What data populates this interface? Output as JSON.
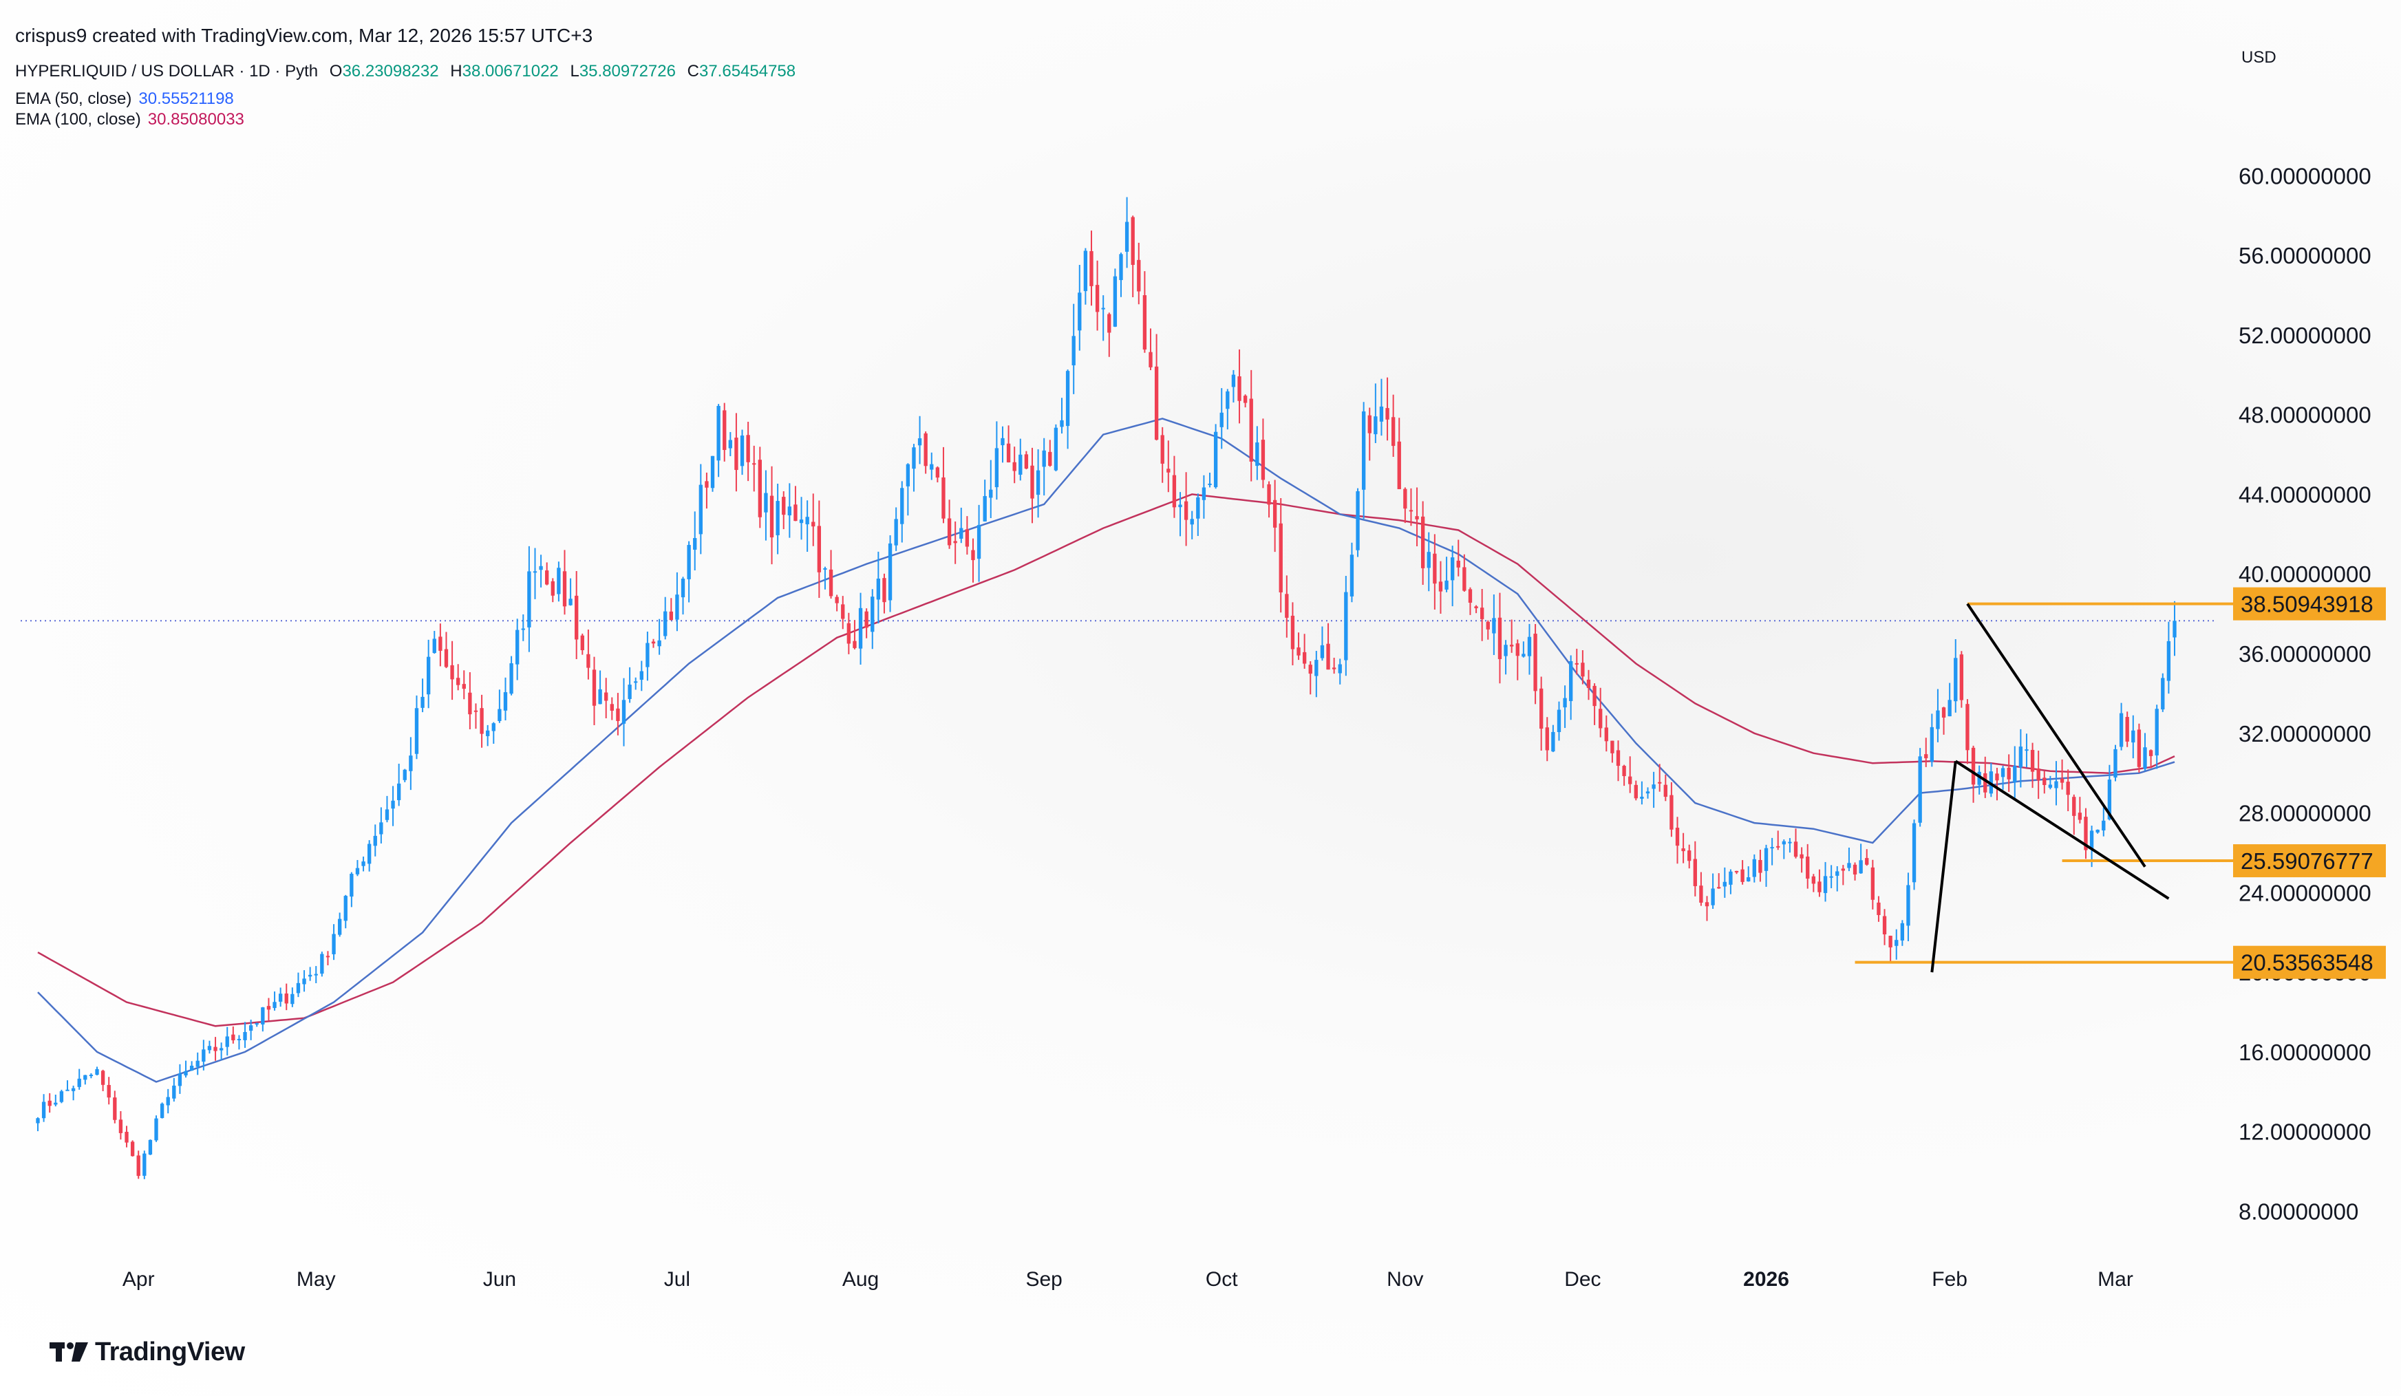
{
  "header": {
    "credit": "crispus9 created with TradingView.com, Mar 12, 2026 15:57 UTC+3",
    "symbol": "HYPERLIQUID / US DOLLAR · 1D · Pyth",
    "ohlc": {
      "o_label": "O",
      "o_value": "36.23098232",
      "h_label": "H",
      "h_value": "38.00671022",
      "l_label": "L",
      "l_value": "35.80972726",
      "c_label": "C",
      "c_value": "37.65454758"
    },
    "ema50": {
      "label": "EMA (50, close)",
      "value": "30.55521198"
    },
    "ema100": {
      "label": "EMA (100, close)",
      "value": "30.85080033"
    }
  },
  "currency": "USD",
  "logo_text": "TradingView",
  "colors": {
    "up": "#2196f3",
    "down": "#ef4052",
    "ema50": "#4a72c8",
    "ema100": "#c2325c",
    "level": "#f5a623",
    "last_price_line": "#5b6bd6",
    "pattern": "#000000"
  },
  "chart_data": {
    "type": "candlestick",
    "title": "HYPERLIQUID / US DOLLAR · 1D · Pyth",
    "ylim": [
      5.6,
      66.4
    ],
    "y_ticks": [
      "60.00000000",
      "56.00000000",
      "52.00000000",
      "48.00000000",
      "44.00000000",
      "40.00000000",
      "36.00000000",
      "32.00000000",
      "28.00000000",
      "24.00000000",
      "20.00000000",
      "16.00000000",
      "12.00000000",
      "8.00000000"
    ],
    "x_ticks": [
      {
        "label": "Apr",
        "day": 17,
        "bold": false
      },
      {
        "label": "May",
        "day": 47,
        "bold": false
      },
      {
        "label": "Jun",
        "day": 78,
        "bold": false
      },
      {
        "label": "Jul",
        "day": 108,
        "bold": false
      },
      {
        "label": "Aug",
        "day": 139,
        "bold": false
      },
      {
        "label": "Sep",
        "day": 170,
        "bold": false
      },
      {
        "label": "Oct",
        "day": 200,
        "bold": false
      },
      {
        "label": "Nov",
        "day": 231,
        "bold": false
      },
      {
        "label": "Dec",
        "day": 261,
        "bold": false
      },
      {
        "label": "2026",
        "day": 292,
        "bold": true
      },
      {
        "label": "Feb",
        "day": 323,
        "bold": false
      },
      {
        "label": "Mar",
        "day": 351,
        "bold": false
      }
    ],
    "price_anchors": [
      [
        0,
        13.0
      ],
      [
        6,
        14.3
      ],
      [
        10,
        15.0
      ],
      [
        14,
        12.0
      ],
      [
        17,
        10.0
      ],
      [
        22,
        14.0
      ],
      [
        28,
        15.8
      ],
      [
        32,
        16.5
      ],
      [
        40,
        18.3
      ],
      [
        48,
        20.5
      ],
      [
        55,
        26.0
      ],
      [
        62,
        30.0
      ],
      [
        67,
        36.5
      ],
      [
        72,
        33.5
      ],
      [
        76,
        32.0
      ],
      [
        80,
        35.0
      ],
      [
        84,
        41.0
      ],
      [
        90,
        38.5
      ],
      [
        94,
        34.0
      ],
      [
        98,
        32.0
      ],
      [
        103,
        37.0
      ],
      [
        108,
        38.5
      ],
      [
        115,
        47.5
      ],
      [
        119,
        46.0
      ],
      [
        124,
        42.5
      ],
      [
        130,
        43.5
      ],
      [
        134,
        38.5
      ],
      [
        138,
        37.0
      ],
      [
        143,
        39.5
      ],
      [
        149,
        47.0
      ],
      [
        154,
        42.0
      ],
      [
        158,
        41.0
      ],
      [
        163,
        47.0
      ],
      [
        168,
        43.5
      ],
      [
        172,
        47.0
      ],
      [
        177,
        55.0
      ],
      [
        181,
        53.0
      ],
      [
        184,
        57.5
      ],
      [
        186,
        53.5
      ],
      [
        190,
        46.0
      ],
      [
        193,
        43.0
      ],
      [
        196,
        43.5
      ],
      [
        199,
        46.5
      ],
      [
        202,
        49.0
      ],
      [
        206,
        46.0
      ],
      [
        209,
        41.5
      ],
      [
        212,
        37.0
      ],
      [
        216,
        35.5
      ],
      [
        220,
        36.0
      ],
      [
        224,
        47.0
      ],
      [
        228,
        48.0
      ],
      [
        232,
        42.5
      ],
      [
        236,
        39.5
      ],
      [
        240,
        41.0
      ],
      [
        243,
        38.0
      ],
      [
        247,
        36.5
      ],
      [
        252,
        37.0
      ],
      [
        255,
        30.5
      ],
      [
        259,
        35.0
      ],
      [
        262,
        34.0
      ],
      [
        266,
        31.0
      ],
      [
        270,
        28.5
      ],
      [
        274,
        29.0
      ],
      [
        278,
        25.5
      ],
      [
        282,
        23.5
      ],
      [
        286,
        24.5
      ],
      [
        291,
        25.5
      ],
      [
        296,
        26.5
      ],
      [
        300,
        24.0
      ],
      [
        305,
        25.5
      ],
      [
        309,
        25.0
      ],
      [
        312,
        21.5
      ],
      [
        315,
        22.0
      ],
      [
        318,
        31.0
      ],
      [
        321,
        32.5
      ],
      [
        324,
        35.0
      ],
      [
        327,
        30.0
      ],
      [
        331,
        29.5
      ],
      [
        335,
        31.0
      ],
      [
        339,
        29.0
      ],
      [
        343,
        29.5
      ],
      [
        346,
        26.5
      ],
      [
        349,
        28.0
      ],
      [
        352,
        32.5
      ],
      [
        355,
        31.0
      ],
      [
        357,
        31.0
      ],
      [
        359,
        34.5
      ],
      [
        361,
        37.65
      ]
    ],
    "ema50_anchors": [
      [
        0,
        19.0
      ],
      [
        10,
        16.0
      ],
      [
        20,
        14.5
      ],
      [
        35,
        16.0
      ],
      [
        50,
        18.5
      ],
      [
        65,
        22.0
      ],
      [
        80,
        27.5
      ],
      [
        95,
        31.5
      ],
      [
        110,
        35.5
      ],
      [
        125,
        38.8
      ],
      [
        140,
        40.5
      ],
      [
        155,
        42.0
      ],
      [
        170,
        43.5
      ],
      [
        180,
        47.0
      ],
      [
        190,
        47.8
      ],
      [
        200,
        46.8
      ],
      [
        210,
        44.8
      ],
      [
        220,
        43.0
      ],
      [
        230,
        42.3
      ],
      [
        240,
        41.0
      ],
      [
        250,
        39.0
      ],
      [
        260,
        35.0
      ],
      [
        270,
        31.5
      ],
      [
        280,
        28.5
      ],
      [
        290,
        27.5
      ],
      [
        300,
        27.2
      ],
      [
        310,
        26.5
      ],
      [
        318,
        29.0
      ],
      [
        325,
        29.2
      ],
      [
        335,
        29.6
      ],
      [
        345,
        29.8
      ],
      [
        355,
        30.0
      ],
      [
        361,
        30.56
      ]
    ],
    "ema100_anchors": [
      [
        0,
        21.0
      ],
      [
        15,
        18.5
      ],
      [
        30,
        17.3
      ],
      [
        45,
        17.7
      ],
      [
        60,
        19.5
      ],
      [
        75,
        22.5
      ],
      [
        90,
        26.5
      ],
      [
        105,
        30.3
      ],
      [
        120,
        33.8
      ],
      [
        135,
        36.8
      ],
      [
        150,
        38.5
      ],
      [
        165,
        40.2
      ],
      [
        180,
        42.3
      ],
      [
        195,
        44.0
      ],
      [
        210,
        43.5
      ],
      [
        220,
        43.0
      ],
      [
        230,
        42.7
      ],
      [
        240,
        42.2
      ],
      [
        250,
        40.5
      ],
      [
        260,
        38.0
      ],
      [
        270,
        35.5
      ],
      [
        280,
        33.5
      ],
      [
        290,
        32.0
      ],
      [
        300,
        31.0
      ],
      [
        310,
        30.5
      ],
      [
        320,
        30.6
      ],
      [
        330,
        30.5
      ],
      [
        340,
        30.1
      ],
      [
        350,
        30.0
      ],
      [
        357,
        30.3
      ],
      [
        361,
        30.85
      ]
    ],
    "last_price": 37.65,
    "levels": [
      {
        "label": "38.50943918",
        "value": 38.5,
        "from_day": 326
      },
      {
        "label": "25.59076777",
        "value": 25.6,
        "from_day": 342
      },
      {
        "label": "20.53563548",
        "value": 20.5,
        "from_day": 307
      }
    ],
    "pattern_lines": [
      [
        [
          326,
          38.5
        ],
        [
          356,
          25.3
        ]
      ],
      [
        [
          324,
          30.6
        ],
        [
          360,
          23.7
        ]
      ],
      [
        [
          320,
          20.0
        ],
        [
          324,
          30.6
        ]
      ]
    ]
  }
}
